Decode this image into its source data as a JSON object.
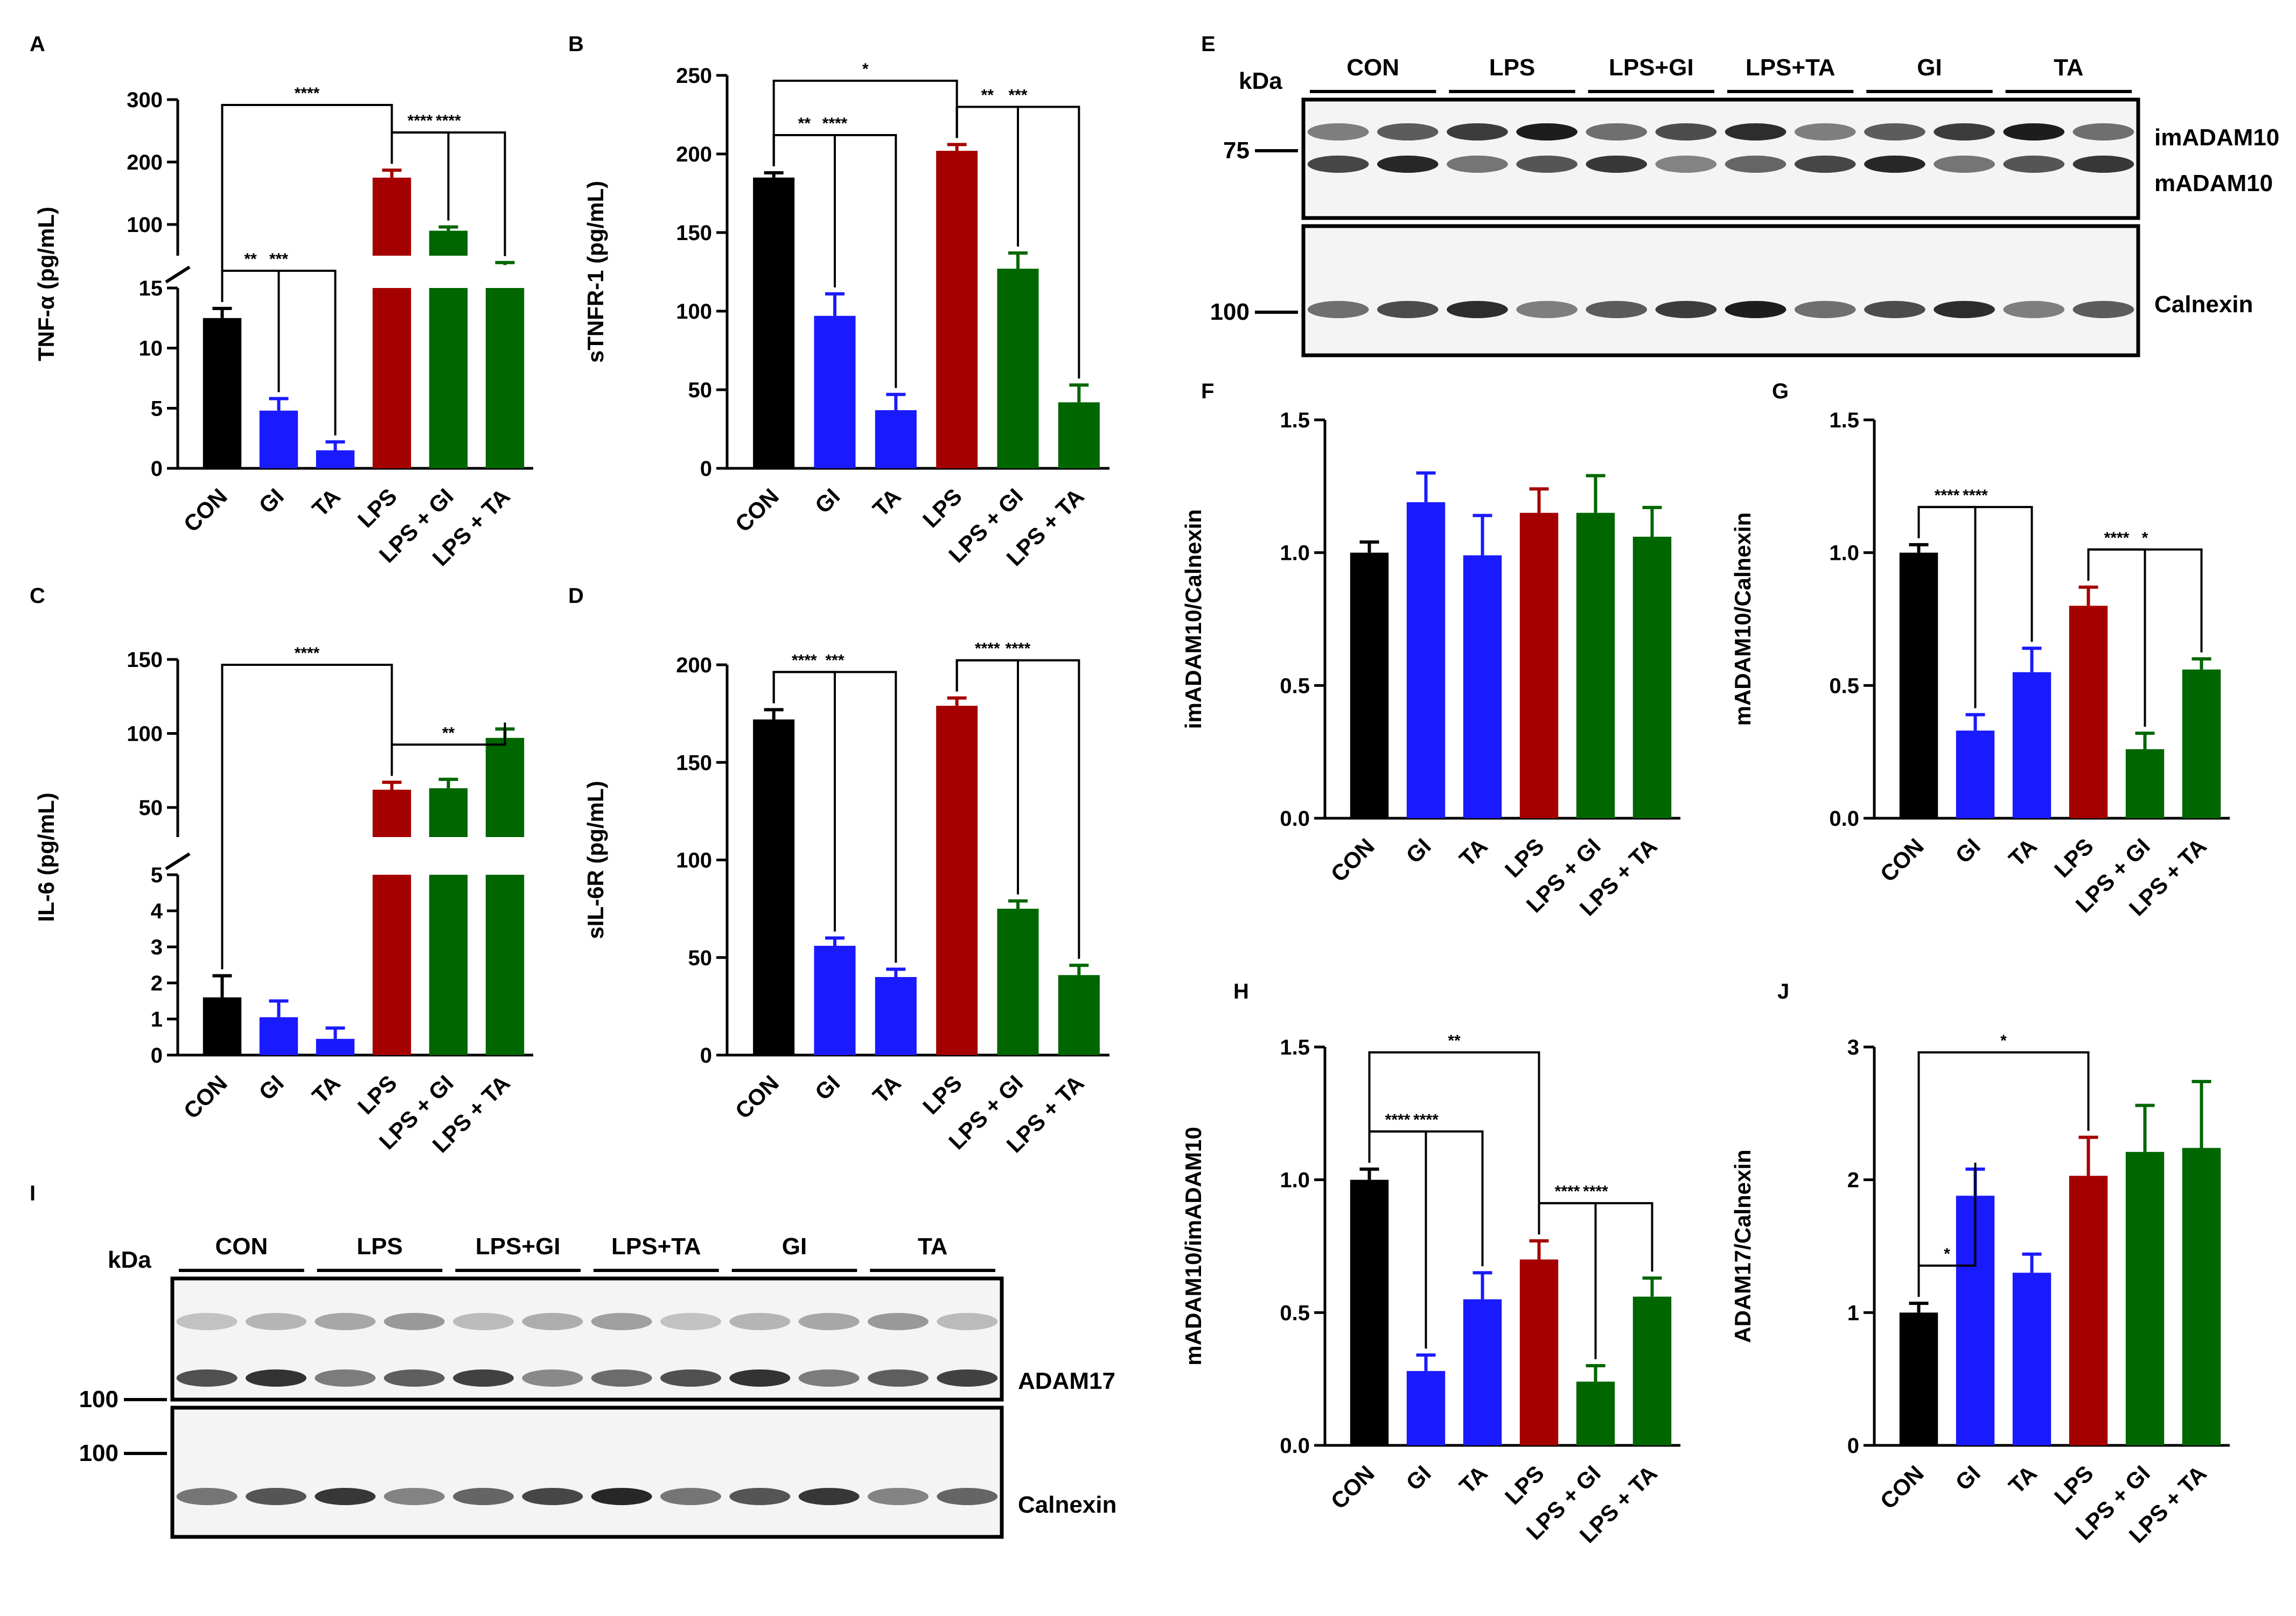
{
  "colors": {
    "CON": "#000000",
    "GI": "#1a1aff",
    "TA": "#1a1aff",
    "LPS": "#a50000",
    "LPS + GI": "#006600",
    "LPS + TA": "#006600"
  },
  "chart_data": [
    {
      "id": "A",
      "panel_label": "A",
      "type": "bar",
      "ylabel": "TNF-α (pg/mL)",
      "categories": [
        "CON",
        "GI",
        "TA",
        "LPS",
        "LPS + GI",
        "LPS + TA"
      ],
      "values": [
        12.5,
        4.8,
        1.5,
        175,
        90,
        35
      ],
      "errors": [
        0.8,
        1.0,
        0.7,
        12,
        6,
        4
      ],
      "axis": {
        "type": "broken",
        "lower": [
          0,
          15
        ],
        "lower_ticks": [
          "0",
          "5",
          "10",
          "15"
        ],
        "upper": [
          50,
          300
        ],
        "upper_ticks": [
          "100",
          "200",
          "300"
        ]
      },
      "significance": [
        {
          "from": "CON",
          "to": "LPS",
          "label": "****"
        },
        {
          "from": "CON",
          "to": "GI",
          "label": "**"
        },
        {
          "from": "CON",
          "to": "TA",
          "label": "***"
        },
        {
          "from": "LPS",
          "to": "LPS + GI",
          "label": "****"
        },
        {
          "from": "LPS",
          "to": "LPS + TA",
          "label": "****"
        }
      ]
    },
    {
      "id": "B",
      "panel_label": "B",
      "type": "bar",
      "ylabel": "sTNFR-1 (pg/mL)",
      "categories": [
        "CON",
        "GI",
        "TA",
        "LPS",
        "LPS + GI",
        "LPS + TA"
      ],
      "values": [
        185,
        97,
        37,
        202,
        127,
        42
      ],
      "errors": [
        3,
        14,
        10,
        4,
        10,
        11
      ],
      "ylim": [
        0,
        250
      ],
      "ticks": [
        "0",
        "50",
        "100",
        "150",
        "200",
        "250"
      ],
      "significance": [
        {
          "from": "CON",
          "to": "LPS",
          "label": "*"
        },
        {
          "from": "CON",
          "to": "GI",
          "label": "**"
        },
        {
          "from": "CON",
          "to": "TA",
          "label": "****"
        },
        {
          "from": "LPS",
          "to": "LPS + GI",
          "label": "**"
        },
        {
          "from": "LPS",
          "to": "LPS + TA",
          "label": "***"
        }
      ]
    },
    {
      "id": "C",
      "panel_label": "C",
      "type": "bar",
      "ylabel": "IL-6 (pg/mL)",
      "categories": [
        "CON",
        "GI",
        "TA",
        "LPS",
        "LPS + GI",
        "LPS + TA"
      ],
      "values": [
        1.6,
        1.05,
        0.45,
        62,
        63,
        97
      ],
      "errors": [
        0.6,
        0.45,
        0.3,
        5,
        6,
        6
      ],
      "axis": {
        "type": "broken",
        "lower": [
          0,
          5
        ],
        "lower_ticks": [
          "0",
          "1",
          "2",
          "3",
          "4",
          "5"
        ],
        "upper": [
          30,
          150
        ],
        "upper_ticks": [
          "50",
          "100",
          "150"
        ]
      },
      "significance": [
        {
          "from": "CON",
          "to": "LPS",
          "label": "****"
        },
        {
          "from": "LPS",
          "to": "LPS + TA",
          "label": "**"
        }
      ]
    },
    {
      "id": "D",
      "panel_label": "D",
      "type": "bar",
      "ylabel": "sIL-6R (pg/mL)",
      "categories": [
        "CON",
        "GI",
        "TA",
        "LPS",
        "LPS + GI",
        "LPS + TA"
      ],
      "values": [
        172,
        56,
        40,
        179,
        75,
        41
      ],
      "errors": [
        5,
        4,
        4,
        4,
        4,
        5
      ],
      "ylim": [
        0,
        200
      ],
      "ticks": [
        "0",
        "50",
        "100",
        "150",
        "200"
      ],
      "significance": [
        {
          "from": "CON",
          "to": "GI",
          "label": "****"
        },
        {
          "from": "CON",
          "to": "TA",
          "label": "***"
        },
        {
          "from": "LPS",
          "to": "LPS + GI",
          "label": "****"
        },
        {
          "from": "LPS",
          "to": "LPS + TA",
          "label": "****"
        }
      ]
    },
    {
      "id": "F",
      "panel_label": "F",
      "type": "bar",
      "ylabel": "imADAM10/Calnexin",
      "categories": [
        "CON",
        "GI",
        "TA",
        "LPS",
        "LPS + GI",
        "LPS + TA"
      ],
      "values": [
        1.0,
        1.19,
        0.99,
        1.15,
        1.15,
        1.06
      ],
      "errors": [
        0.04,
        0.11,
        0.15,
        0.09,
        0.14,
        0.11
      ],
      "ylim": [
        0,
        1.5
      ],
      "ticks": [
        "0.0",
        "0.5",
        "1.0",
        "1.5"
      ],
      "significance": []
    },
    {
      "id": "G",
      "panel_label": "G",
      "type": "bar",
      "ylabel": "mADAM10/Calnexin",
      "categories": [
        "CON",
        "GI",
        "TA",
        "LPS",
        "LPS + GI",
        "LPS + TA"
      ],
      "values": [
        1.0,
        0.33,
        0.55,
        0.8,
        0.26,
        0.56
      ],
      "errors": [
        0.03,
        0.06,
        0.09,
        0.07,
        0.06,
        0.04
      ],
      "ylim": [
        0,
        1.5
      ],
      "ticks": [
        "0.0",
        "0.5",
        "1.0",
        "1.5"
      ],
      "significance": [
        {
          "from": "CON",
          "to": "GI",
          "label": "****"
        },
        {
          "from": "CON",
          "to": "TA",
          "label": "****"
        },
        {
          "from": "LPS",
          "to": "LPS + GI",
          "label": "****"
        },
        {
          "from": "LPS",
          "to": "LPS + TA",
          "label": "*"
        }
      ]
    },
    {
      "id": "H",
      "panel_label": "H",
      "type": "bar",
      "ylabel": "mADAM10/imADAM10",
      "categories": [
        "CON",
        "GI",
        "TA",
        "LPS",
        "LPS + GI",
        "LPS + TA"
      ],
      "values": [
        1.0,
        0.28,
        0.55,
        0.7,
        0.24,
        0.56
      ],
      "errors": [
        0.04,
        0.06,
        0.1,
        0.07,
        0.06,
        0.07
      ],
      "ylim": [
        0,
        1.5
      ],
      "ticks": [
        "0.0",
        "0.5",
        "1.0",
        "1.5"
      ],
      "significance": [
        {
          "from": "CON",
          "to": "LPS",
          "label": "**"
        },
        {
          "from": "CON",
          "to": "GI",
          "label": "****"
        },
        {
          "from": "CON",
          "to": "TA",
          "label": "****"
        },
        {
          "from": "LPS",
          "to": "LPS + GI",
          "label": "****"
        },
        {
          "from": "LPS",
          "to": "LPS + TA",
          "label": "****"
        }
      ]
    },
    {
      "id": "J",
      "panel_label": "J",
      "type": "bar",
      "ylabel": "ADAM17/Calnexin",
      "categories": [
        "CON",
        "GI",
        "TA",
        "LPS",
        "LPS + GI",
        "LPS + TA"
      ],
      "values": [
        1.0,
        1.88,
        1.3,
        2.03,
        2.21,
        2.24
      ],
      "errors": [
        0.07,
        0.2,
        0.14,
        0.29,
        0.35,
        0.5
      ],
      "ylim": [
        0,
        3
      ],
      "ticks": [
        "0",
        "1",
        "2",
        "3"
      ],
      "significance": [
        {
          "from": "CON",
          "to": "GI",
          "label": "*"
        },
        {
          "from": "CON",
          "to": "LPS",
          "label": "*"
        }
      ]
    }
  ],
  "blots": [
    {
      "id": "E",
      "panel_label": "E",
      "kda_label": "kDa",
      "groups": [
        "CON",
        "LPS",
        "LPS+GI",
        "LPS+TA",
        "GI",
        "TA"
      ],
      "lanes": 12,
      "markers": [
        "75",
        "100"
      ],
      "band_labels": [
        "imADAM10",
        "mADAM10",
        "Calnexin"
      ]
    },
    {
      "id": "I",
      "panel_label": "I",
      "kda_label": "kDa",
      "groups": [
        "CON",
        "LPS",
        "LPS+GI",
        "LPS+TA",
        "GI",
        "TA"
      ],
      "lanes": 12,
      "markers": [
        "100",
        "100"
      ],
      "band_labels": [
        "ADAM17",
        "Calnexin"
      ]
    }
  ]
}
